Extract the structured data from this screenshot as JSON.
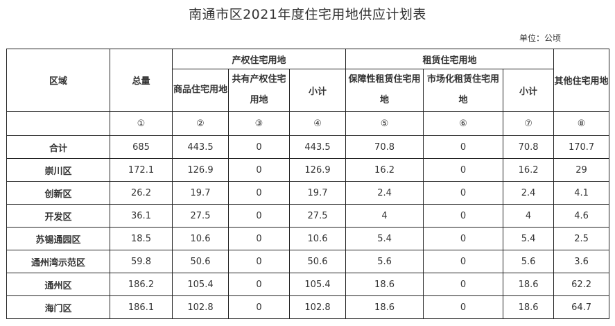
{
  "title": "南通市区2021年度住宅用地供应计划表",
  "unit": "单位：公顷",
  "header": {
    "region": "区域",
    "total": "总量",
    "property_group": "产权住宅用地",
    "rental_group": "租赁住宅用地",
    "other": "其他住宅用地",
    "commercial": "商品住宅用地",
    "shared": "共有产权住宅用地",
    "property_subtotal": "小计",
    "affordable_rental": "保障性租赁住宅用地",
    "market_rental": "市场化租赁住宅用地",
    "rental_subtotal": "小计"
  },
  "col_numbers": [
    "①",
    "②",
    "③",
    "④",
    "⑤",
    "⑥",
    "⑦",
    "⑧"
  ],
  "rows": [
    {
      "region": "合计",
      "values": [
        "685",
        "443.5",
        "0",
        "443.5",
        "70.8",
        "0",
        "70.8",
        "170.7"
      ]
    },
    {
      "region": "崇川区",
      "values": [
        "172.1",
        "126.9",
        "0",
        "126.9",
        "16.2",
        "0",
        "16.2",
        "29"
      ]
    },
    {
      "region": "创新区",
      "values": [
        "26.2",
        "19.7",
        "0",
        "19.7",
        "2.4",
        "0",
        "2.4",
        "4.1"
      ]
    },
    {
      "region": "开发区",
      "values": [
        "36.1",
        "27.5",
        "0",
        "27.5",
        "4",
        "0",
        "4",
        "4.6"
      ]
    },
    {
      "region": "苏锡通园区",
      "values": [
        "18.5",
        "10.6",
        "0",
        "10.6",
        "5.4",
        "0",
        "5.4",
        "2.5"
      ]
    },
    {
      "region": "通州湾示范区",
      "values": [
        "59.8",
        "50.6",
        "0",
        "50.6",
        "5.6",
        "0",
        "5.6",
        "3.6"
      ]
    },
    {
      "region": "通州区",
      "values": [
        "186.2",
        "105.4",
        "0",
        "105.4",
        "18.6",
        "0",
        "18.6",
        "62.2"
      ]
    },
    {
      "region": "海门区",
      "values": [
        "186.1",
        "102.8",
        "0",
        "102.8",
        "18.6",
        "0",
        "18.6",
        "64.7"
      ]
    }
  ]
}
